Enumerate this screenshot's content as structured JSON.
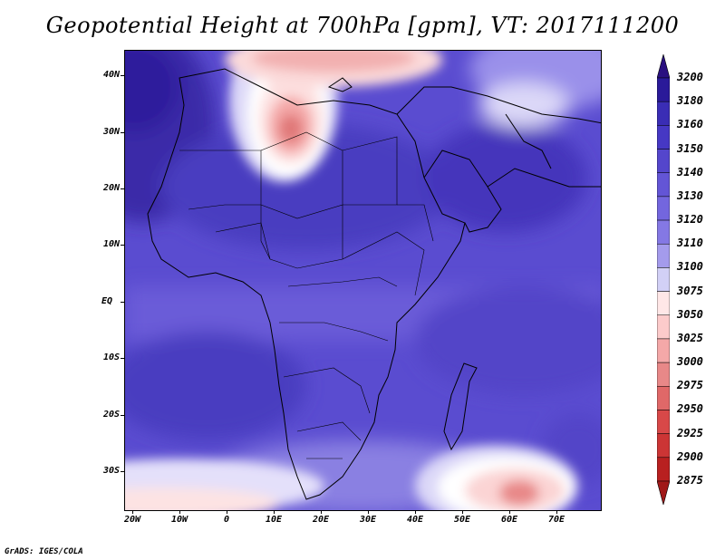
{
  "title": "Geopotential Height at 700hPa [gpm], VT: 2017111200",
  "credit": "GrADS: IGES/COLA",
  "lat_labels": [
    "40N",
    "30N",
    "20N",
    "10N",
    "EQ",
    "10S",
    "20S",
    "30S"
  ],
  "lon_labels": [
    "20W",
    "10W",
    "0",
    "10E",
    "20E",
    "30E",
    "40E",
    "50E",
    "60E",
    "70E"
  ],
  "colorbar": {
    "labels": [
      "3200",
      "3180",
      "3160",
      "3150",
      "3140",
      "3130",
      "3120",
      "3110",
      "3100",
      "3075",
      "3050",
      "3025",
      "3000",
      "2975",
      "2950",
      "2925",
      "2900",
      "2875"
    ],
    "colors": [
      "#2a1a99",
      "#3a2db5",
      "#4638c4",
      "#5446cc",
      "#6355d6",
      "#7366de",
      "#8478e4",
      "#a49bec",
      "#d2d0f6",
      "#ffe7e7",
      "#fccbcb",
      "#f4a8a8",
      "#e88888",
      "#e06868",
      "#d84848",
      "#cc3535",
      "#b82020"
    ],
    "top_arrow_color": "#2a1080",
    "bottom_arrow_color": "#a01818"
  }
}
